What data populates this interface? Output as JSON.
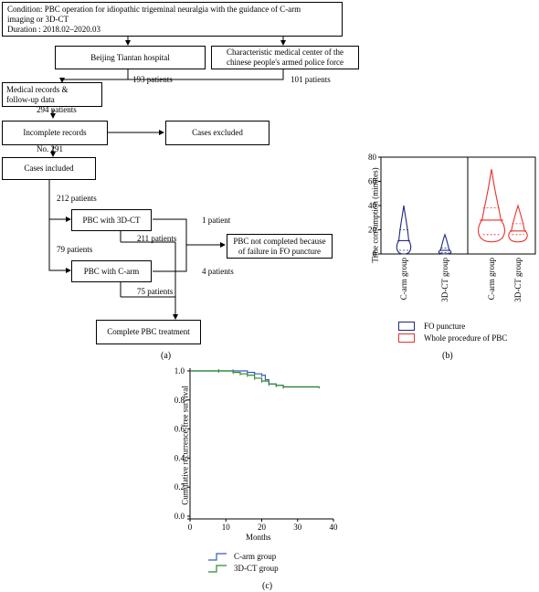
{
  "flowchart": {
    "condition_lines": [
      "Condition: PBC operation for idiopathic trigeminal neuralgia with the guidance of C-arm",
      "imaging or 3D-CT",
      "Duration : 2018.02–2020.03"
    ],
    "beijing": "Beijing Tiantan hospital",
    "characteristic_lines": [
      "Characteristic medical center of the",
      "chinese people's armed police force"
    ],
    "n_beijing": "193 patients",
    "n_characteristic": "101 patients",
    "medical_lines": [
      "Medical records &",
      "follow-up data"
    ],
    "n_total": "294 patients",
    "incomplete": "Incomplete records",
    "excluded": "Cases excluded",
    "no_label": "No. 291",
    "included": "Cases included",
    "n_3dct_group": "212 patients",
    "pbc_3dct": "PBC with 3D-CT",
    "n_3dct_fail": "1 patient",
    "n_3dct_done": "211 patients",
    "not_completed_lines": [
      "PBC not completed because",
      "of failure in FO puncture"
    ],
    "n_carm_group": "79 patients",
    "pbc_carm": "PBC with C-arm",
    "n_carm_fail": "4 patients",
    "n_carm_done": "75 patients",
    "complete": "Complete PBC treatment",
    "panel": "(a)"
  },
  "violin": {
    "panel": "(b)",
    "legend": [
      "FO puncture",
      "Whole procedure of PBC"
    ],
    "colors": {
      "fo": "#1f2a7a",
      "whole": "#e8322b"
    },
    "chart_data": {
      "type": "violin",
      "ylabel": "Time consumption (minutes)",
      "ylim": [
        0,
        80
      ],
      "yticks": [
        0,
        20,
        40,
        60,
        80
      ],
      "categories": [
        "C-arm group",
        "3D-CT group",
        "C-arm group",
        "3D-CT group"
      ],
      "series": [
        {
          "name": "FO puncture",
          "groups": [
            {
              "category": "C-arm group",
              "min": 0,
              "max": 40,
              "median": 11,
              "q1": 3,
              "q3": 20
            },
            {
              "category": "3D-CT group",
              "min": 0,
              "max": 16,
              "median": 3,
              "q1": 1,
              "q3": 5
            }
          ]
        },
        {
          "name": "Whole procedure of PBC",
          "groups": [
            {
              "category": "C-arm group",
              "min": 10,
              "max": 70,
              "median": 28,
              "q1": 16,
              "q3": 38
            },
            {
              "category": "3D-CT group",
              "min": 10,
              "max": 40,
              "median": 19,
              "q1": 16,
              "q3": 25
            }
          ]
        }
      ]
    }
  },
  "survival": {
    "panel": "(c)",
    "legend": [
      "C-arm group",
      "3D-CT group"
    ],
    "colors": {
      "carm": "#3a5bbf",
      "ct": "#2e8b2e"
    },
    "chart_data": {
      "type": "line",
      "xlabel": "Months",
      "ylabel": "Cumulative recurrence-free survival",
      "xlim": [
        0,
        40
      ],
      "ylim": [
        0,
        1.0
      ],
      "xticks": [
        0,
        10,
        20,
        30,
        40
      ],
      "yticks": [
        0.0,
        0.2,
        0.4,
        0.6,
        0.8,
        1.0
      ],
      "series": [
        {
          "name": "C-arm group",
          "x": [
            0,
            8,
            12,
            16,
            18,
            20,
            21,
            22,
            24,
            26,
            36
          ],
          "y": [
            1.0,
            1.0,
            1.0,
            0.99,
            0.98,
            0.97,
            0.94,
            0.91,
            0.9,
            0.89,
            0.89
          ]
        },
        {
          "name": "3D-CT group",
          "x": [
            0,
            8,
            12,
            14,
            16,
            18,
            20,
            22,
            24,
            26,
            36
          ],
          "y": [
            1.0,
            1.0,
            0.99,
            0.98,
            0.97,
            0.95,
            0.93,
            0.91,
            0.9,
            0.89,
            0.88
          ]
        }
      ]
    }
  }
}
